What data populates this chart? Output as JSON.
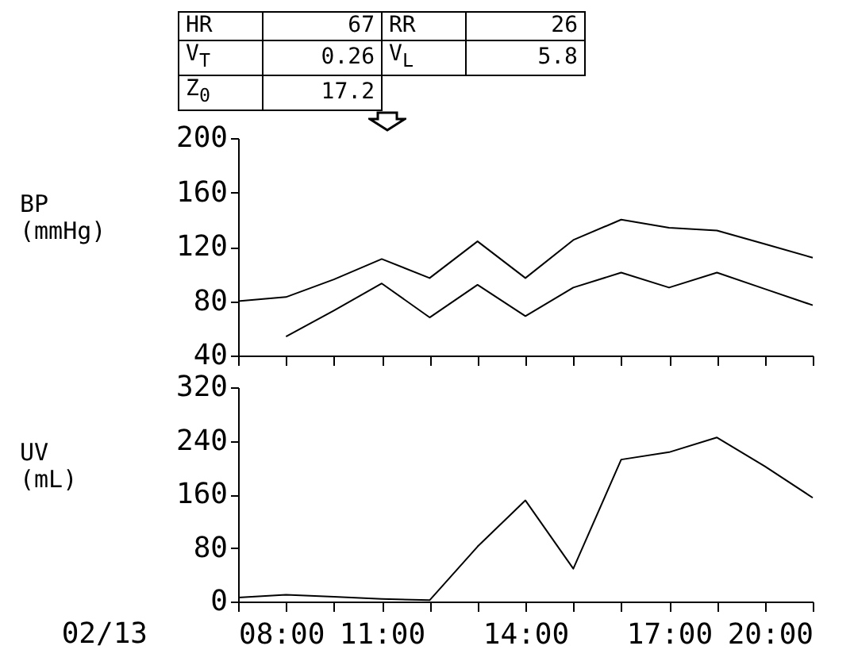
{
  "chart_data": [
    {
      "type": "line",
      "ylabel": "BP (mmHg)",
      "x": [
        8,
        9,
        10,
        11,
        12,
        13,
        14,
        15,
        16,
        17,
        18,
        19,
        20
      ],
      "series": [
        {
          "color": "#000000",
          "values": [
            80,
            83,
            96,
            111,
            97,
            124,
            97,
            125,
            140,
            134,
            132,
            122,
            112
          ]
        },
        {
          "color": "#000000",
          "values": [
            null,
            54,
            73,
            93,
            68,
            92,
            69,
            90,
            101,
            90,
            101,
            89,
            77
          ]
        }
      ],
      "xlim": [
        8,
        20
      ],
      "xticks": [
        {
          "value": 8,
          "label": null
        },
        {
          "value": 9,
          "label": null
        },
        {
          "value": 10,
          "label": null
        },
        {
          "value": 11,
          "label": null
        },
        {
          "value": 12,
          "label": null
        },
        {
          "value": 13,
          "label": null
        },
        {
          "value": 14,
          "label": null
        },
        {
          "value": 15,
          "label": null
        },
        {
          "value": 16,
          "label": null
        },
        {
          "value": 17,
          "label": null
        },
        {
          "value": 18,
          "label": null
        },
        {
          "value": 19,
          "label": null
        },
        {
          "value": 20,
          "label": null
        }
      ],
      "ylim": [
        40,
        200
      ],
      "yticks": [
        40,
        80,
        120,
        160,
        200
      ],
      "tick_labels": "y",
      "annotations": [
        "HR",
        "67",
        "RR",
        "26",
        "V$_{T}$",
        "0.26",
        "V$_{L}$",
        "5.8",
        "Z$_{0}$",
        "17.2"
      ]
    },
    {
      "type": "line",
      "ylabel": "UV (mL)",
      "x": [
        8,
        9,
        10,
        11,
        12,
        13,
        14,
        15,
        16,
        17,
        18,
        19,
        20
      ],
      "series": [
        {
          "color": "#000000",
          "values": [
            6,
            10,
            7,
            4,
            2,
            82,
            151,
            49,
            212,
            223,
            245,
            202,
            155
          ]
        }
      ],
      "xlim": [
        8,
        20
      ],
      "xticks": [
        {
          "value": 8,
          "label": "08:00"
        },
        {
          "value": 9,
          "label": null
        },
        {
          "value": 10,
          "label": null
        },
        {
          "value": 11,
          "label": "11:00"
        },
        {
          "value": 12,
          "label": null
        },
        {
          "value": 13,
          "label": null
        },
        {
          "value": 14,
          "label": "14:00"
        },
        {
          "value": 15,
          "label": null
        },
        {
          "value": 16,
          "label": null
        },
        {
          "value": 17,
          "label": "17:00"
        },
        {
          "value": 18,
          "label": null
        },
        {
          "value": 19,
          "label": null
        },
        {
          "value": 20,
          "label": "20:00"
        }
      ],
      "ylim": [
        0,
        320
      ],
      "yticks": [
        0,
        80,
        160,
        240,
        320
      ],
      "annotations": [
        "02/13"
      ]
    }
  ]
}
